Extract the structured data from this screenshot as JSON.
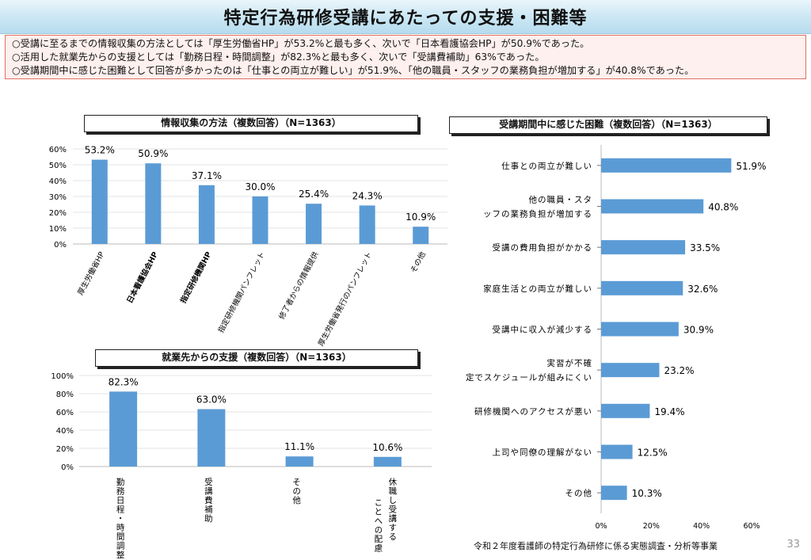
{
  "header": {
    "title": "特定行為研修受講にあたっての支援・困難等"
  },
  "summary": [
    "○受講に至るまでの情報収集の方法としては「厚生労働省HP」が53.2%と最も多く、次いで「日本看護協会HP」が50.9%であった。",
    "○活用した就業先からの支援としては「勤務日程・時間調整」が82.3%と最も多く、次いで「受講費補助」63%であった。",
    "○受講期間中に感じた困難として回答が多かったのは「仕事との両立が難しい」が51.9%、「他の職員・スタッフの業務負担が増加する」が40.8%であった。"
  ],
  "colors": {
    "bar": "#5b9bd5"
  },
  "chart_data": [
    {
      "type": "bar",
      "title": "情報収集の方法（複数回答）（N=1363）",
      "categories": [
        "厚生労働省HP",
        "日本看護協会HP",
        "指定研修機関HP",
        "指定研修機関パンフレット",
        "修了者からの情報提供",
        "厚生労働省発行のパンフレット",
        "その他"
      ],
      "values": [
        53.2,
        50.9,
        37.1,
        30.0,
        25.4,
        24.3,
        10.9
      ],
      "value_labels": [
        "53.2%",
        "50.9%",
        "37.1%",
        "30.0%",
        "25.4%",
        "24.3%",
        "10.9%"
      ],
      "ylim": [
        0,
        60
      ],
      "yticks": [
        "0%",
        "10%",
        "20%",
        "30%",
        "40%",
        "50%",
        "60%"
      ]
    },
    {
      "type": "bar",
      "title": "就業先からの支援（複数回答）（N=1363）",
      "categories": [
        "勤務日程・時間調整",
        "受講費補助",
        "その他",
        "休職し受講することへの配慮"
      ],
      "values": [
        82.3,
        63.0,
        11.1,
        10.6
      ],
      "value_labels": [
        "82.3%",
        "63.0%",
        "11.1%",
        "10.6%"
      ],
      "ylim": [
        0,
        100
      ],
      "yticks": [
        "0%",
        "20%",
        "40%",
        "60%",
        "80%",
        "100%"
      ]
    },
    {
      "type": "bar",
      "orientation": "horizontal",
      "title": "受講期間中に感じた困難（複数回答）（N=1363）",
      "categories": [
        "仕事との両立が難しい",
        "他の職員・スタッフの業務負担が増加する",
        "受講の費用負担がかかる",
        "家庭生活との両立が難しい",
        "受講中に収入が減少する",
        "実習が不確定でスケジュールが組みにくい",
        "研修機関へのアクセスが悪い",
        "上司や同僚の理解がない",
        "その他"
      ],
      "values": [
        51.9,
        40.8,
        33.5,
        32.6,
        30.9,
        23.2,
        19.4,
        12.5,
        10.3
      ],
      "value_labels": [
        "51.9%",
        "40.8%",
        "33.5%",
        "32.6%",
        "30.9%",
        "23.2%",
        "19.4%",
        "12.5%",
        "10.3%"
      ],
      "xlim": [
        0,
        60
      ],
      "xticks": [
        "0%",
        "20%",
        "40%",
        "60%"
      ]
    }
  ],
  "footer": {
    "source": "令和２年度看護師の特定行為研修に係る実態調査・分析等事業",
    "page_number": "33"
  }
}
